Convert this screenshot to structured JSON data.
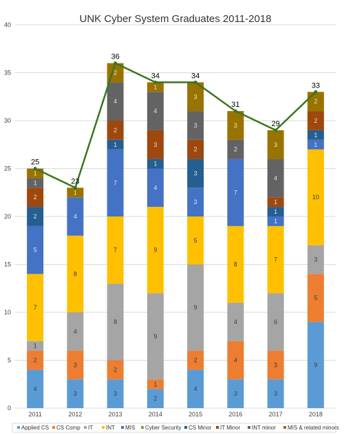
{
  "chart_data": {
    "type": "bar",
    "subtype": "stacked",
    "title": "UNK Cyber System Graduates 2011-2018",
    "xlabel": "",
    "ylabel": "",
    "ylim": [
      0,
      40
    ],
    "yticks": [
      0,
      5,
      10,
      15,
      20,
      25,
      30,
      35,
      40
    ],
    "grid": true,
    "legend_position": "bottom",
    "categories": [
      "2011",
      "2012",
      "2013",
      "2014",
      "2015",
      "2016",
      "2017",
      "2018"
    ],
    "series": [
      {
        "name": "Applied CS",
        "color": "#5b9bd5",
        "values": [
          4,
          3,
          3,
          2,
          4,
          3,
          3,
          9
        ]
      },
      {
        "name": "CS Comp",
        "color": "#ed7d31",
        "values": [
          2,
          3,
          2,
          1,
          2,
          4,
          3,
          5
        ]
      },
      {
        "name": "IT",
        "color": "#a5a5a5",
        "values": [
          1,
          4,
          8,
          9,
          9,
          4,
          6,
          3
        ]
      },
      {
        "name": "INT",
        "color": "#ffc000",
        "values": [
          7,
          8,
          7,
          9,
          5,
          8,
          7,
          10
        ]
      },
      {
        "name": "MIS",
        "color": "#4472c4",
        "values": [
          5,
          4,
          7,
          4,
          3,
          7,
          1,
          1
        ]
      },
      {
        "name": "Cyber Security",
        "color": "#70ad47",
        "values": [
          0,
          0,
          0,
          0,
          0,
          0,
          0,
          0
        ]
      },
      {
        "name": "CS Minor",
        "color": "#255e91",
        "values": [
          2,
          0,
          1,
          1,
          3,
          0,
          1,
          1
        ]
      },
      {
        "name": "IT Minor",
        "color": "#9e480e",
        "values": [
          2,
          0,
          2,
          3,
          2,
          0,
          1,
          2
        ]
      },
      {
        "name": "INT minor",
        "color": "#636363",
        "values": [
          1,
          0,
          4,
          4,
          3,
          2,
          4,
          0
        ]
      },
      {
        "name": "MIS & related minors",
        "color": "#997300",
        "values": [
          1,
          1,
          2,
          1,
          3,
          3,
          3,
          2
        ]
      }
    ],
    "totals": [
      25,
      23,
      36,
      34,
      34,
      31,
      29,
      33
    ],
    "total_line_color": "#38761d"
  }
}
